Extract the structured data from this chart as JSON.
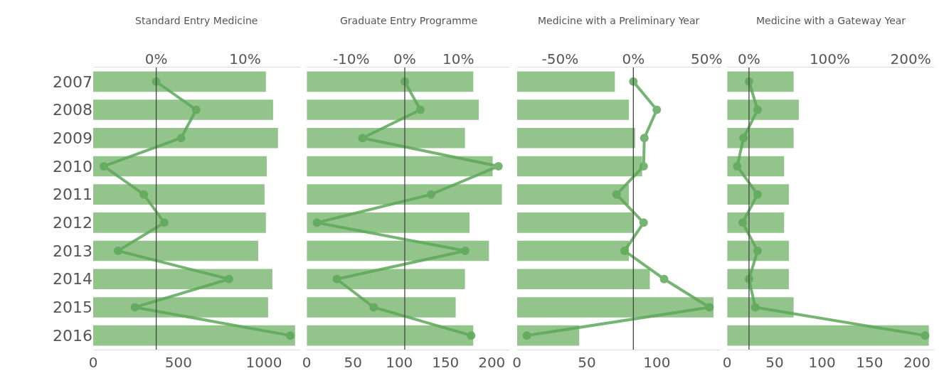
{
  "chart_data": [
    {
      "type": "bar",
      "orientation": "horizontal",
      "title": "Standard Entry Medicine",
      "categories": [
        "2007",
        "2008",
        "2009",
        "2010",
        "2011",
        "2012",
        "2013",
        "2014",
        "2015",
        "2016"
      ],
      "legend": false,
      "grid": false,
      "xlim": [
        0,
        1212
      ],
      "xticks": [
        0,
        500,
        1000
      ],
      "x2lim": [
        -7.1,
        16.2
      ],
      "x2ticks": [
        {
          "value": 0,
          "label": "0%"
        },
        {
          "value": 10,
          "label": "10%"
        }
      ],
      "ref_lines": [
        {
          "axis": "x2",
          "value": 0,
          "color": "#444444"
        }
      ],
      "series": [
        {
          "color": "#93c48b",
          "values": [
            1012,
            1054,
            1083,
            1017,
            1004,
            1012,
            967,
            1050,
            1025,
            1183
          ]
        },
        {
          "type": "line",
          "axis": "x2",
          "color": "#5ea85a",
          "marker": "circle",
          "values": [
            0,
            4.5,
            2.8,
            -5.9,
            -1.4,
            0.9,
            -4.3,
            8.2,
            -2.4,
            15.1
          ]
        }
      ]
    },
    {
      "type": "bar",
      "orientation": "horizontal",
      "title": "Graduate Entry Programme",
      "categories": [
        "2007",
        "2008",
        "2009",
        "2010",
        "2011",
        "2012",
        "2013",
        "2014",
        "2015",
        "2016"
      ],
      "legend": false,
      "grid": false,
      "tick_labels": "x",
      "xlim": [
        0,
        220
      ],
      "xticks": [
        0,
        50,
        100,
        150,
        200
      ],
      "x2lim": [
        -18.3,
        19.7
      ],
      "x2ticks": [
        {
          "value": -10,
          "label": "-10%"
        },
        {
          "value": 0,
          "label": "0%"
        },
        {
          "value": 10,
          "label": "10%"
        }
      ],
      "ref_lines": [
        {
          "axis": "x2",
          "value": 0,
          "color": "#444444"
        }
      ],
      "series": [
        {
          "color": "#93c48b",
          "values": [
            180,
            186,
            171,
            201,
            211,
            176,
            197,
            171,
            161,
            180
          ]
        },
        {
          "type": "line",
          "axis": "x2",
          "color": "#5ea85a",
          "marker": "circle",
          "values": [
            0,
            2.9,
            -7.9,
            17.5,
            4.9,
            -16.4,
            11.3,
            -12.7,
            -5.8,
            12.4
          ]
        }
      ]
    },
    {
      "type": "bar",
      "orientation": "horizontal",
      "title": "Medicine with a Preliminary Year",
      "categories": [
        "2007",
        "2008",
        "2009",
        "2010",
        "2011",
        "2012",
        "2013",
        "2014",
        "2015",
        "2016"
      ],
      "legend": false,
      "grid": false,
      "tick_labels": "x",
      "xlim": [
        0,
        145.5
      ],
      "xticks": [
        0,
        50,
        100
      ],
      "x2lim": [
        -79.5,
        59.5
      ],
      "x2ticks": [
        {
          "value": -50,
          "label": "-50%"
        },
        {
          "value": 0,
          "label": "0%"
        },
        {
          "value": 50,
          "label": "50%"
        }
      ],
      "ref_lines": [
        {
          "axis": "x2",
          "value": 0,
          "color": "#444444"
        }
      ],
      "series": [
        {
          "color": "#93c48b",
          "values": [
            70,
            80,
            84.5,
            89.5,
            80,
            83.5,
            80,
            95,
            140.5,
            44.5
          ]
        },
        {
          "type": "line",
          "axis": "x2",
          "color": "#5ea85a",
          "marker": "circle",
          "values": [
            0,
            16,
            7.5,
            7,
            -11.5,
            7,
            -6,
            21,
            52,
            -72.7
          ]
        }
      ]
    },
    {
      "type": "bar",
      "orientation": "horizontal",
      "title": "Medicine with a Gateway Year",
      "categories": [
        "2007",
        "2008",
        "2009",
        "2010",
        "2011",
        "2012",
        "2013",
        "2014",
        "2015",
        "2016"
      ],
      "legend": false,
      "grid": false,
      "tick_labels": "x",
      "xlim": [
        0,
        218
      ],
      "xticks": [
        0,
        50,
        100,
        150,
        200
      ],
      "x2lim": [
        -27,
        229
      ],
      "x2ticks": [
        {
          "value": 0,
          "label": "0%"
        },
        {
          "value": 100,
          "label": "100%"
        },
        {
          "value": 200,
          "label": "200%"
        }
      ],
      "ref_lines": [
        {
          "axis": "x2",
          "value": 0,
          "color": "#444444"
        }
      ],
      "series": [
        {
          "color": "#93c48b",
          "values": [
            70,
            75.5,
            70,
            60,
            65,
            60,
            65,
            65,
            70,
            212.5
          ]
        },
        {
          "type": "line",
          "axis": "x2",
          "color": "#5ea85a",
          "marker": "circle",
          "values": [
            0,
            10.6,
            -6.8,
            -14.6,
            10.6,
            -7.9,
            10.6,
            0,
            7.7,
            218
          ]
        }
      ]
    }
  ]
}
